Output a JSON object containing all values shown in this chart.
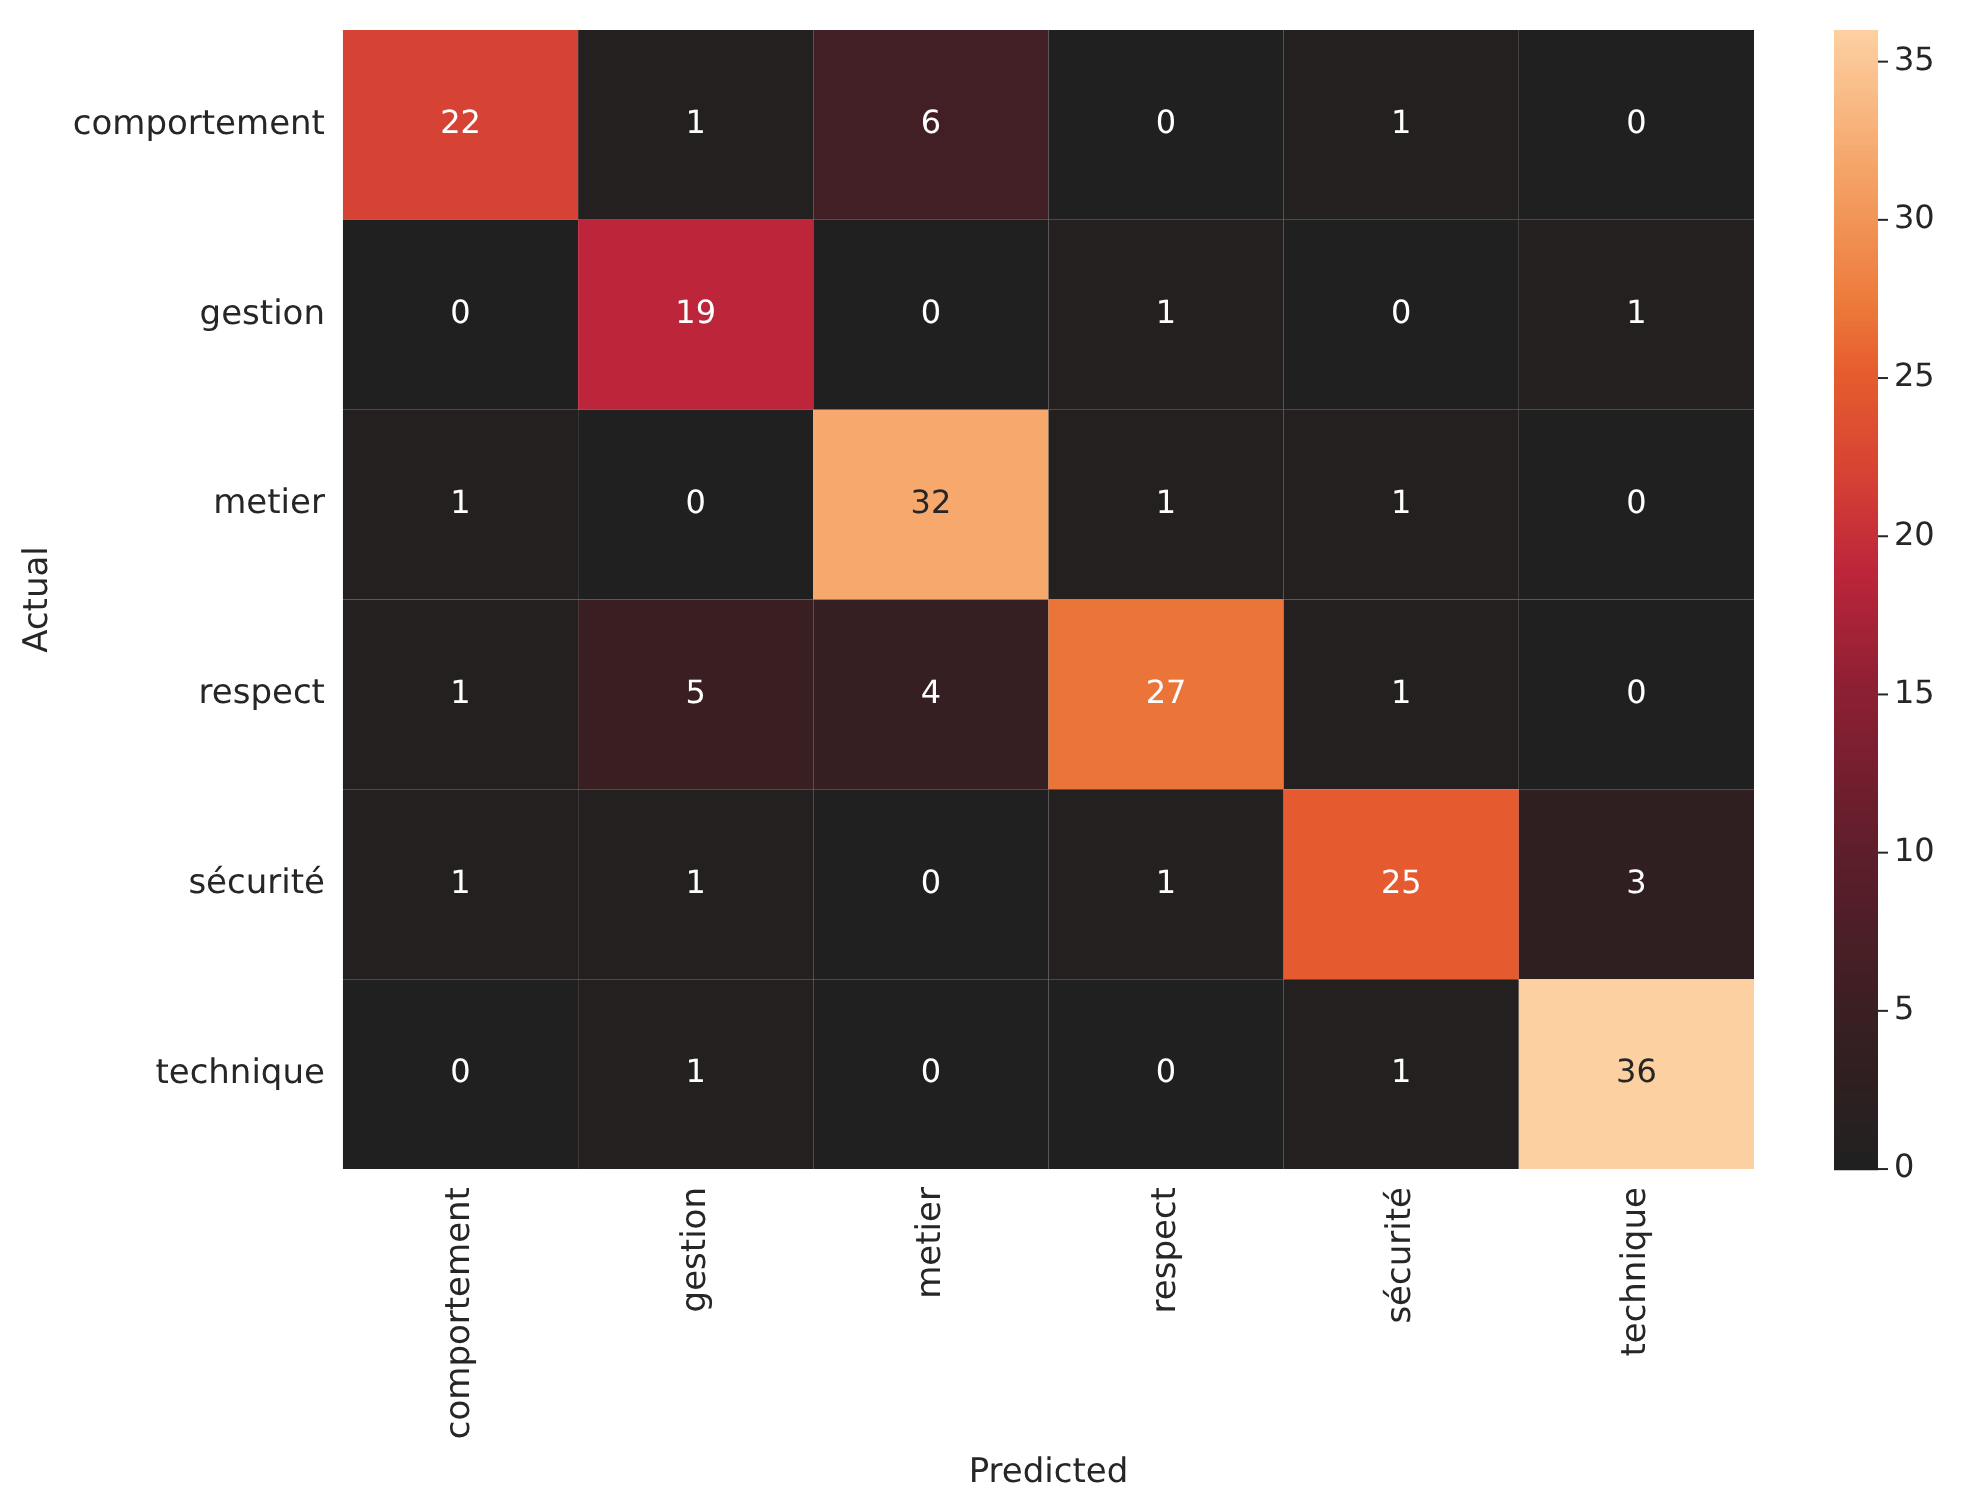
{
  "chart_data": {
    "type": "heatmap",
    "xlabel": "Predicted",
    "ylabel": "Actual",
    "categories": [
      "comportement",
      "gestion",
      "metier",
      "respect",
      "sécurité",
      "technique"
    ],
    "y_categories": [
      "comportement",
      "gestion",
      "metier",
      "respect",
      "sécurité",
      "technique"
    ],
    "cells": [
      [
        22,
        1,
        6,
        0,
        1,
        0
      ],
      [
        0,
        19,
        0,
        1,
        0,
        1
      ],
      [
        1,
        0,
        32,
        1,
        1,
        0
      ],
      [
        1,
        5,
        4,
        27,
        1,
        0
      ],
      [
        1,
        1,
        0,
        1,
        25,
        3
      ],
      [
        0,
        1,
        0,
        0,
        1,
        36
      ]
    ],
    "clim": [
      0,
      36
    ],
    "cticks": [
      0,
      5,
      10,
      15,
      20,
      25,
      30,
      35
    ],
    "data_labels": true
  }
}
